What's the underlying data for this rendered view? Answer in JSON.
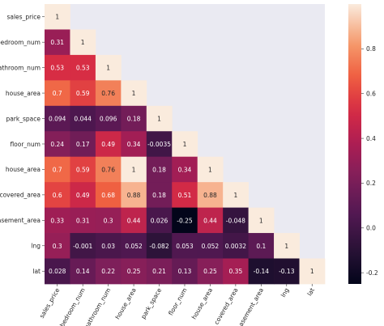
{
  "chart_data": {
    "type": "heatmap",
    "title": "",
    "xlabel": "",
    "ylabel": "",
    "mask": "upper-triangle",
    "labels": [
      "sales_price",
      "bedroom_num",
      "bathroom_num",
      "house_area",
      "park_space",
      "floor_num",
      "house_area",
      "covered_area",
      "basement_area",
      "lng",
      "lat"
    ],
    "matrix": [
      [
        "1"
      ],
      [
        "0.31",
        "1"
      ],
      [
        "0.53",
        "0.53",
        "1"
      ],
      [
        "0.7",
        "0.59",
        "0.76",
        "1"
      ],
      [
        "0.094",
        "0.044",
        "0.096",
        "0.18",
        "1"
      ],
      [
        "0.24",
        "0.17",
        "0.49",
        "0.34",
        "-0.0035",
        "1"
      ],
      [
        "0.7",
        "0.59",
        "0.76",
        "1",
        "0.18",
        "0.34",
        "1"
      ],
      [
        "0.6",
        "0.49",
        "0.68",
        "0.88",
        "0.18",
        "0.51",
        "0.88",
        "1"
      ],
      [
        "0.33",
        "0.31",
        "0.3",
        "0.44",
        "0.026",
        "-0.25",
        "0.44",
        "-0.048",
        "1"
      ],
      [
        "0.3",
        "-0.001",
        "0.03",
        "0.052",
        "-0.082",
        "0.053",
        "0.052",
        "0.0032",
        "0.1",
        "1"
      ],
      [
        "0.028",
        "0.14",
        "0.22",
        "0.25",
        "0.21",
        "0.13",
        "0.25",
        "0.35",
        "-0.14",
        "-0.13",
        "1"
      ]
    ],
    "colorbar": {
      "min": -0.25,
      "max": 1.0,
      "ticks": [
        "0.8",
        "0.6",
        "0.4",
        "0.2",
        "0.0",
        "-0.2"
      ],
      "tick_values": [
        0.8,
        0.6,
        0.4,
        0.2,
        0.0,
        -0.2
      ],
      "colormap": "rocket"
    },
    "colors": {
      "masked_background": "#eaeaf2",
      "light_text": "#ffffff",
      "dark_text": "#262626"
    }
  }
}
